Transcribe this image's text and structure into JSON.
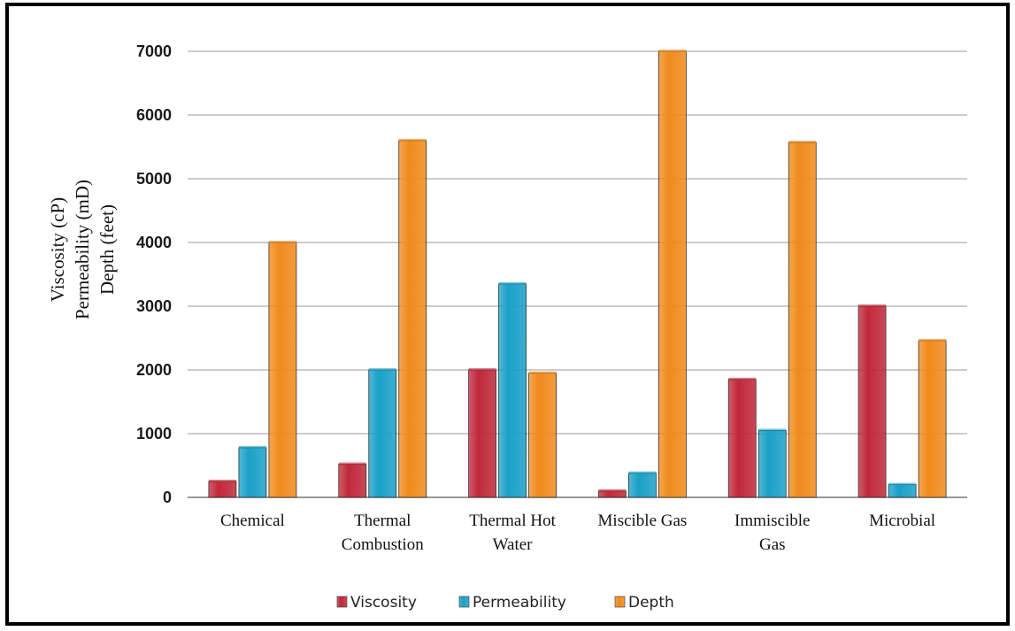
{
  "chart_data": {
    "type": "bar",
    "categories": [
      [
        "Chemical"
      ],
      [
        "Thermal",
        "Combustion"
      ],
      [
        "Thermal Hot",
        "Water"
      ],
      [
        "Miscible Gas"
      ],
      [
        "Immiscible",
        "Gas"
      ],
      [
        "Microbial"
      ]
    ],
    "series": [
      {
        "name": "Viscosity",
        "color": "#c0283a",
        "values": [
          250,
          520,
          2000,
          100,
          1850,
          3000
        ]
      },
      {
        "name": "Permeability",
        "color": "#1aa0c8",
        "values": [
          780,
          2000,
          3350,
          380,
          1050,
          200
        ]
      },
      {
        "name": "Depth",
        "color": "#f08a1c",
        "values": [
          4000,
          5600,
          1950,
          7000,
          5570,
          2460
        ]
      }
    ],
    "ylabel_lines": [
      "Viscosity (cP)",
      "Permeability (mD)",
      "Depth (feet)"
    ],
    "yticks": [
      0,
      1000,
      2000,
      3000,
      4000,
      5000,
      6000,
      7000
    ],
    "ylim": [
      0,
      7000
    ],
    "grid": true,
    "legend_position": "bottom"
  }
}
